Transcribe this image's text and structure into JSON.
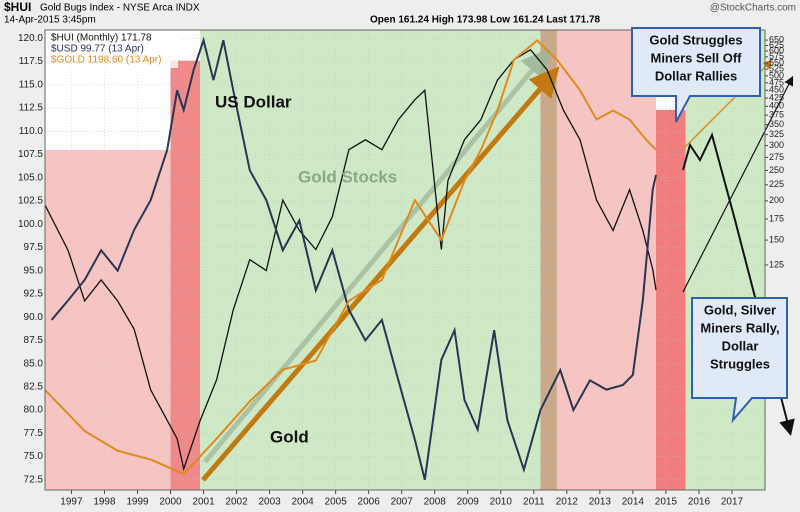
{
  "header": {
    "symbol": "$HUI",
    "name": "Gold Bugs Index - NYSE Arca INDX",
    "date": "14-Apr-2015 3:45pm",
    "quote": "Open 161.24 High 173.98 Low 161.24 Last 171.78",
    "source": "@StockCharts.com"
  },
  "chart_data": {
    "type": "line",
    "xlim": [
      1996.2,
      2018.0
    ],
    "xticks": [
      {
        "value": 1997,
        "label": "1997"
      },
      {
        "value": 1998,
        "label": "1998"
      },
      {
        "value": 1999,
        "label": "1999"
      },
      {
        "value": 2000,
        "label": "2000"
      },
      {
        "value": 2001,
        "label": "2001"
      },
      {
        "value": 2002,
        "label": "2002"
      },
      {
        "value": 2003,
        "label": "2003"
      },
      {
        "value": 2004,
        "label": "2004"
      },
      {
        "value": 2005,
        "label": "2005"
      },
      {
        "value": 2006,
        "label": "2006"
      },
      {
        "value": 2007,
        "label": "2007"
      },
      {
        "value": 2008,
        "label": "2008"
      },
      {
        "value": 2009,
        "label": "2009"
      },
      {
        "value": 2010,
        "label": "2010"
      },
      {
        "value": 2011,
        "label": "2011"
      },
      {
        "value": 2012,
        "label": "2012"
      },
      {
        "value": 2013,
        "label": "2013"
      },
      {
        "value": 2014,
        "label": "2014"
      },
      {
        "value": 2015,
        "label": "2015"
      },
      {
        "value": 2016,
        "label": "2016"
      },
      {
        "value": 2017,
        "label": "2017"
      }
    ],
    "ylim": [
      71.4,
      120.9
    ],
    "yticks": [
      {
        "value": 120,
        "label": "120.0"
      },
      117.5,
      {
        "value": 115,
        "label": "115.0"
      },
      112.5,
      {
        "value": 110,
        "label": "110.0"
      },
      107.5,
      {
        "value": 105,
        "label": "105.0"
      },
      102.5,
      {
        "value": 100,
        "label": "100.0"
      },
      97.5,
      {
        "value": 95,
        "label": "95.0"
      },
      92.5,
      {
        "value": 90,
        "label": "90.0"
      },
      87.5,
      {
        "value": 85,
        "label": "85.0"
      },
      82.5,
      {
        "value": 80,
        "label": "80.0"
      },
      77.5,
      {
        "value": 75,
        "label": "75.0"
      },
      72.5
    ],
    "y2lim": [
      24,
      700
    ],
    "y2log": true,
    "y2ticks": [
      50,
      125,
      150,
      175,
      200,
      225,
      250,
      275,
      300,
      325,
      350,
      375,
      400,
      425,
      450,
      475,
      500,
      525,
      550,
      575,
      600,
      625,
      650
    ],
    "regions": [
      {
        "x": [
          1996.2,
          2000.0
        ],
        "y": [
          71.4,
          108
        ],
        "color": "#f7c4c4"
      },
      {
        "x": [
          2000.0,
          2000.9
        ],
        "y": [
          71.4,
          117.6
        ],
        "color": "#f08a8a"
      },
      {
        "x": [
          2000.9,
          2011.2
        ],
        "y": [
          71.4,
          120.9
        ],
        "color": "#cfe8c6"
      },
      {
        "x": [
          2011.2,
          2011.7
        ],
        "y": [
          71.4,
          120.9
        ],
        "color": "#c9a98a"
      },
      {
        "x": [
          2011.7,
          2014.7
        ],
        "y": [
          71.4,
          120.9
        ],
        "color": "#f7c4c4"
      },
      {
        "x": [
          2014.7,
          2015.6
        ],
        "y": [
          71.4,
          112.3
        ],
        "color": "#f07e7e"
      },
      {
        "x": [
          2015.6,
          2018.0
        ],
        "y": [
          71.4,
          120.9
        ],
        "color": "#cfe8c6"
      }
    ],
    "series": [
      {
        "name": "$HUI (Monthly) 171.78",
        "color": "#111111",
        "axis": "y2",
        "x": [
          1996.2,
          1996.9,
          1997.4,
          1997.9,
          1998.4,
          1998.9,
          1999.4,
          2000.2,
          2000.4,
          2000.9,
          2001.4,
          2001.9,
          2002.4,
          2002.9,
          2003.4,
          2003.9,
          2004.4,
          2004.9,
          2005.4,
          2005.9,
          2006.4,
          2006.9,
          2007.4,
          2007.7,
          2008.2,
          2008.4,
          2008.9,
          2009.4,
          2009.9,
          2010.4,
          2010.9,
          2011.4,
          2011.9,
          2012.4,
          2012.9,
          2013.4,
          2013.9,
          2014.3,
          2014.6,
          2014.7
        ],
        "values": [
          194,
          139,
          96,
          112,
          96,
          78,
          50,
          35,
          28,
          40,
          54,
          90,
          130,
          120,
          201,
          161,
          140,
          178,
          291,
          313,
          291,
          363,
          420,
          450,
          140,
          232,
          313,
          363,
          485,
          563,
          606,
          523,
          388,
          313,
          201,
          161,
          217,
          161,
          121,
          104
        ]
      },
      {
        "name": "$USD 99.77 (13 Apr)",
        "color": "#2a3550",
        "x": [
          1996.4,
          1996.9,
          1997.4,
          1997.9,
          1998.4,
          1998.9,
          1999.4,
          1999.9,
          2000.2,
          2000.4,
          2000.7,
          2001.0,
          2001.3,
          2001.6,
          2001.9,
          2002.4,
          2002.9,
          2003.4,
          2003.9,
          2004.4,
          2004.9,
          2005.4,
          2005.9,
          2006.4,
          2006.9,
          2007.4,
          2007.7,
          2008.2,
          2008.6,
          2008.9,
          2009.3,
          2009.8,
          2010.2,
          2010.7,
          2011.2,
          2011.8,
          2012.2,
          2012.7,
          2013.2,
          2013.7,
          2014.0,
          2014.3,
          2014.6,
          2014.7
        ],
        "values": [
          89.7,
          91.8,
          94,
          97.2,
          95,
          99.4,
          102.6,
          108,
          114.4,
          112.3,
          116.6,
          119.8,
          115.5,
          119.8,
          114.4,
          105.8,
          102.6,
          97.2,
          100.4,
          92.9,
          97.2,
          90.8,
          87.5,
          89.7,
          83.2,
          76.8,
          72.5,
          85.4,
          88.6,
          81.1,
          77.9,
          88.6,
          78.9,
          73.6,
          80,
          84.3,
          80,
          83.2,
          82.2,
          82.7,
          83.8,
          91.8,
          103.7,
          105.3
        ]
      },
      {
        "name": "$GOLD 1198.60 (13 Apr)",
        "color": "#e08a1e",
        "axis": "y2",
        "x": [
          1996.2,
          1997.4,
          1998.4,
          1999.4,
          2000.4,
          2001.4,
          2002.4,
          2003.4,
          2004.4,
          2005.4,
          2006.4,
          2007.4,
          2008.2,
          2008.9,
          2009.4,
          2009.9,
          2010.4,
          2011.1,
          2011.7,
          2012.4,
          2012.9,
          2013.4,
          2013.9,
          2014.4,
          2014.7
        ],
        "values": [
          50,
          37,
          32,
          30,
          27,
          35,
          46,
          58,
          62,
          96,
          112,
          201,
          150,
          232,
          291,
          388,
          563,
          648,
          563,
          450,
          363,
          388,
          363,
          313,
          291
        ]
      }
    ]
  },
  "annotations": {
    "usd": "US Dollar",
    "stocks": "Gold Stocks",
    "gold": "Gold",
    "callouts": [
      {
        "lines": [
          "Gold Struggles",
          "Miners Sell Off",
          "Dollar Rallies"
        ]
      },
      {
        "lines": [
          "Gold, Silver",
          "Miners Rally,",
          "Dollar",
          "Struggles"
        ]
      }
    ]
  }
}
